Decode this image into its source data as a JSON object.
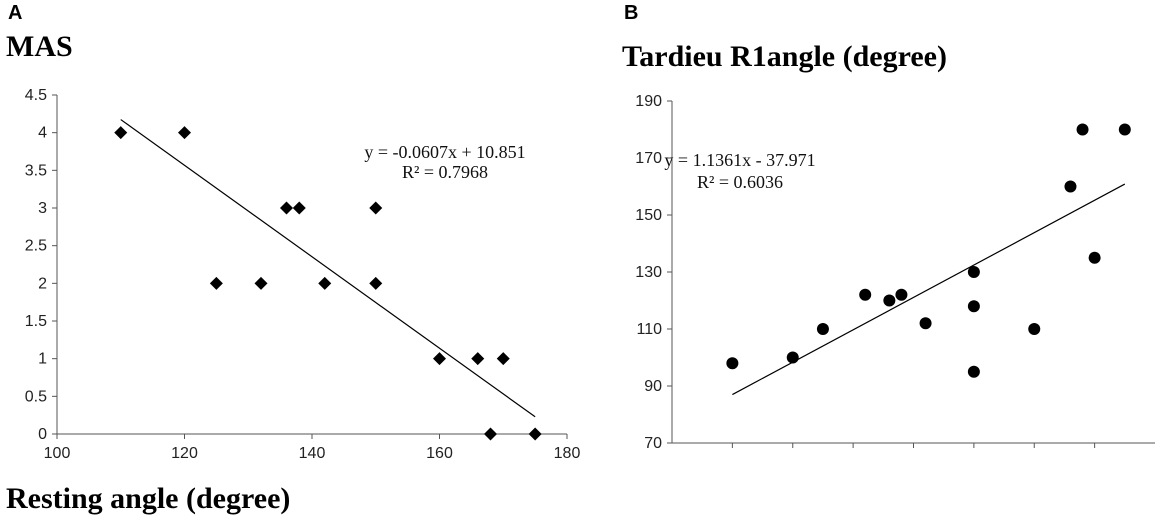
{
  "chart_data": [
    {
      "panel": "A",
      "type": "scatter",
      "title": "MAS",
      "xlabel": "Resting angle (degree)",
      "ylabel": "",
      "xlim": [
        100,
        180
      ],
      "ylim": [
        0,
        4.5
      ],
      "xticks": [
        "100",
        "120",
        "140",
        "160",
        "180"
      ],
      "yticks": [
        "0",
        "0.5",
        "1",
        "1.5",
        "2",
        "2.5",
        "3",
        "3.5",
        "4",
        "4.5"
      ],
      "marker": "diamond",
      "points": [
        {
          "x": 110,
          "y": 4
        },
        {
          "x": 120,
          "y": 4
        },
        {
          "x": 125,
          "y": 2
        },
        {
          "x": 132,
          "y": 2
        },
        {
          "x": 136,
          "y": 3
        },
        {
          "x": 138,
          "y": 3
        },
        {
          "x": 142,
          "y": 2
        },
        {
          "x": 150,
          "y": 3
        },
        {
          "x": 150,
          "y": 2
        },
        {
          "x": 160,
          "y": 1
        },
        {
          "x": 166,
          "y": 1
        },
        {
          "x": 168,
          "y": 0
        },
        {
          "x": 170,
          "y": 1
        },
        {
          "x": 175,
          "y": 0
        }
      ],
      "trendline": {
        "slope": -0.0607,
        "intercept": 10.851,
        "x_range": [
          110,
          175
        ]
      },
      "equation": "y = -0.0607x + 10.851",
      "r2": "R² = 0.7968"
    },
    {
      "panel": "B",
      "type": "scatter",
      "title": "Tardieu R1angle (degree)",
      "xlabel": "",
      "ylabel": "",
      "xlim": [
        100,
        180
      ],
      "ylim": [
        70,
        190
      ],
      "xticks": [],
      "yticks": [
        "70",
        "90",
        "110",
        "130",
        "150",
        "170",
        "190"
      ],
      "marker": "circle",
      "points": [
        {
          "x": 110,
          "y": 98
        },
        {
          "x": 120,
          "y": 100
        },
        {
          "x": 125,
          "y": 110
        },
        {
          "x": 132,
          "y": 122
        },
        {
          "x": 136,
          "y": 120
        },
        {
          "x": 138,
          "y": 122
        },
        {
          "x": 142,
          "y": 112
        },
        {
          "x": 150,
          "y": 130
        },
        {
          "x": 150,
          "y": 118
        },
        {
          "x": 150,
          "y": 95
        },
        {
          "x": 160,
          "y": 110
        },
        {
          "x": 166,
          "y": 160
        },
        {
          "x": 168,
          "y": 180
        },
        {
          "x": 170,
          "y": 135
        },
        {
          "x": 175,
          "y": 180
        }
      ],
      "trendline": {
        "slope": 1.1361,
        "intercept": -37.971,
        "x_range": [
          110,
          175
        ]
      },
      "equation": "y = 1.1361x - 37.971",
      "r2": "R² = 0.6036"
    }
  ]
}
